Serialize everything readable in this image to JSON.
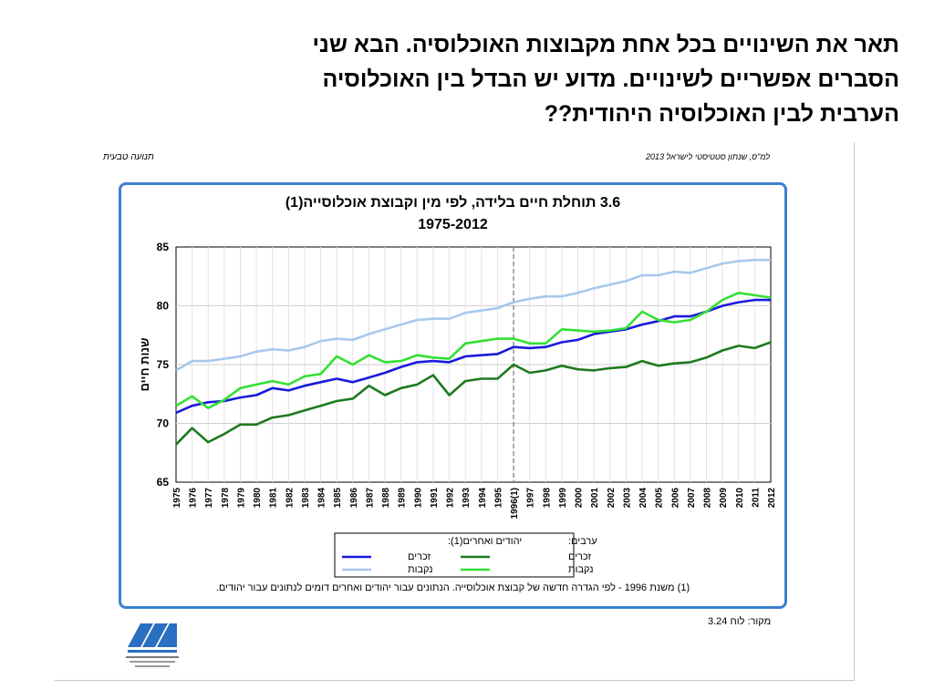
{
  "question": {
    "line1": "תאר את השינויים בכל אחת מקבוצות האוכלוסיה. הבא שני",
    "line2": "הסברים אפשריים לשינויים. מדוע יש הבדל בין האוכלוסיה",
    "line3": "הערבית לבין האוכלוסיה היהודית??"
  },
  "header": {
    "right": "תנועה טבעית",
    "left": "למ\"ס, שנתון סטטיסטי לישראל 2013"
  },
  "footnote": "(1) משנת 1996 - לפי הגדרה חדשה של קבוצת אוכלוסייה. הנתונים עבור יהודים ואחרים דומים לנתונים עבור יהודים.",
  "source": "מקור: לוח 3.24",
  "colors": {
    "frame": "#3d7fd0",
    "jewish_male": "#1a1adc",
    "jewish_female": "#a8c8ec",
    "arab_male": "#1e7a1e",
    "arab_female": "#33e033"
  },
  "chart_data": {
    "type": "line",
    "title": "3.6 תוחלת חיים בלידה, לפי מין וקבוצת אוכלוסייה(1)",
    "subtitle": "1975-2012",
    "ylabel": "שנות חיים",
    "xlabel": "",
    "ylim": [
      65,
      85
    ],
    "yticks": [
      65,
      70,
      75,
      80,
      85
    ],
    "grid": true,
    "marker_year": "1996",
    "x": [
      "1975",
      "1976",
      "1977",
      "1978",
      "1979",
      "1980",
      "1981",
      "1982",
      "1983",
      "1984",
      "1985",
      "1986",
      "1987",
      "1988",
      "1989",
      "1990",
      "1991",
      "1992",
      "1993",
      "1994",
      "1995",
      "1996(1)",
      "1997",
      "1998",
      "1999",
      "2000",
      "2001",
      "2002",
      "2003",
      "2004",
      "2005",
      "2006",
      "2007",
      "2008",
      "2009",
      "2010",
      "2011",
      "2012"
    ],
    "legend": {
      "group_jewish": "יהודים ואחרים(1):",
      "group_arab": "ערבים:",
      "male": "זכרים",
      "female": "נקבות"
    },
    "series": [
      {
        "key": "jewish_female",
        "values": [
          74.5,
          75.3,
          75.3,
          75.5,
          75.7,
          76.1,
          76.3,
          76.2,
          76.5,
          77.0,
          77.2,
          77.1,
          77.6,
          78.0,
          78.4,
          78.8,
          78.9,
          78.9,
          79.4,
          79.6,
          79.8,
          80.3,
          80.6,
          80.8,
          80.8,
          81.1,
          81.5,
          81.8,
          82.1,
          82.6,
          82.6,
          82.9,
          82.8,
          83.2,
          83.6,
          83.8,
          83.9,
          83.9
        ]
      },
      {
        "key": "jewish_male",
        "values": [
          70.9,
          71.5,
          71.8,
          71.9,
          72.2,
          72.4,
          73.0,
          72.8,
          73.2,
          73.5,
          73.8,
          73.5,
          73.9,
          74.3,
          74.8,
          75.2,
          75.3,
          75.2,
          75.7,
          75.8,
          75.9,
          76.5,
          76.4,
          76.5,
          76.9,
          77.1,
          77.6,
          77.8,
          78.0,
          78.4,
          78.7,
          79.1,
          79.1,
          79.5,
          80.0,
          80.3,
          80.5,
          80.5
        ]
      },
      {
        "key": "arab_female",
        "values": [
          71.5,
          72.3,
          71.3,
          72.0,
          73.0,
          73.3,
          73.6,
          73.3,
          74.0,
          74.2,
          75.7,
          75.0,
          75.8,
          75.2,
          75.3,
          75.8,
          75.6,
          75.5,
          76.8,
          77.0,
          77.2,
          77.2,
          76.8,
          76.8,
          78.0,
          77.9,
          77.8,
          77.9,
          78.1,
          79.5,
          78.8,
          78.6,
          78.8,
          79.5,
          80.5,
          81.1,
          80.9,
          80.7
        ]
      },
      {
        "key": "arab_male",
        "values": [
          68.2,
          69.6,
          68.4,
          69.1,
          69.9,
          69.9,
          70.5,
          70.7,
          71.1,
          71.5,
          71.9,
          72.1,
          73.2,
          72.4,
          73.0,
          73.3,
          74.1,
          72.4,
          73.6,
          73.8,
          73.8,
          75.0,
          74.3,
          74.5,
          74.9,
          74.6,
          74.5,
          74.7,
          74.8,
          75.3,
          74.9,
          75.1,
          75.2,
          75.6,
          76.2,
          76.6,
          76.4,
          76.9
        ]
      }
    ]
  }
}
